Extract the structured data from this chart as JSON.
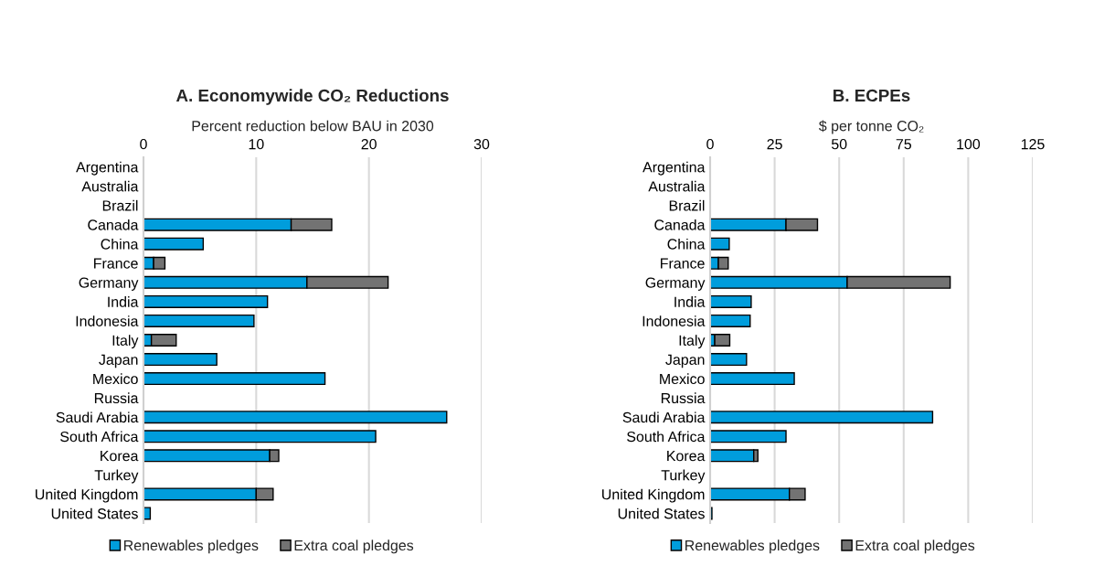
{
  "chart_data": [
    {
      "type": "bar",
      "title": "A. Economywide CO₂ Reductions",
      "xlabel": "Percent reduction below BAU in 2030",
      "orientation": "horizontal",
      "stacked": true,
      "categories": [
        "Argentina",
        "Australia",
        "Brazil",
        "Canada",
        "China",
        "France",
        "Germany",
        "India",
        "Indonesia",
        "Italy",
        "Japan",
        "Mexico",
        "Russia",
        "Saudi Arabia",
        "South Africa",
        "Korea",
        "Turkey",
        "United Kingdom",
        "United States"
      ],
      "series": [
        {
          "name": "Renewables pledges",
          "color": "#009ddc",
          "values": [
            null,
            null,
            null,
            13.1,
            5.3,
            0.9,
            14.5,
            11.0,
            9.8,
            0.7,
            6.5,
            16.1,
            null,
            26.9,
            20.6,
            11.2,
            null,
            10.0,
            0.6
          ]
        },
        {
          "name": "Extra coal pledges",
          "color": "#737373",
          "values": [
            null,
            null,
            null,
            3.6,
            null,
            1.0,
            7.2,
            null,
            null,
            2.2,
            null,
            null,
            null,
            null,
            null,
            0.8,
            null,
            1.5,
            null
          ]
        }
      ],
      "xlim": [
        0,
        30
      ],
      "xticks": [
        0,
        10,
        20,
        30
      ],
      "grid": "x",
      "legend": "bottom"
    },
    {
      "type": "bar",
      "title": "B. ECPEs",
      "xlabel": "$ per tonne CO₂",
      "orientation": "horizontal",
      "stacked": true,
      "categories": [
        "Argentina",
        "Australia",
        "Brazil",
        "Canada",
        "China",
        "France",
        "Germany",
        "India",
        "Indonesia",
        "Italy",
        "Japan",
        "Mexico",
        "Russia",
        "Saudi Arabia",
        "South Africa",
        "Korea",
        "Turkey",
        "United Kingdom",
        "United States"
      ],
      "series": [
        {
          "name": "Renewables pledges",
          "color": "#009ddc",
          "values": [
            null,
            null,
            null,
            29.4,
            7.4,
            3.2,
            53.1,
            15.9,
            15.5,
            1.8,
            14.1,
            32.6,
            null,
            86.2,
            29.4,
            16.9,
            null,
            30.7,
            0.7
          ]
        },
        {
          "name": "Extra coal pledges",
          "color": "#737373",
          "values": [
            null,
            null,
            null,
            12.2,
            null,
            3.8,
            39.9,
            null,
            null,
            5.8,
            null,
            null,
            null,
            null,
            null,
            1.6,
            null,
            6.1,
            null
          ]
        }
      ],
      "xlim": [
        0,
        125
      ],
      "xticks": [
        0,
        25,
        50,
        75,
        100,
        125
      ],
      "grid": "x",
      "legend": "bottom"
    }
  ]
}
